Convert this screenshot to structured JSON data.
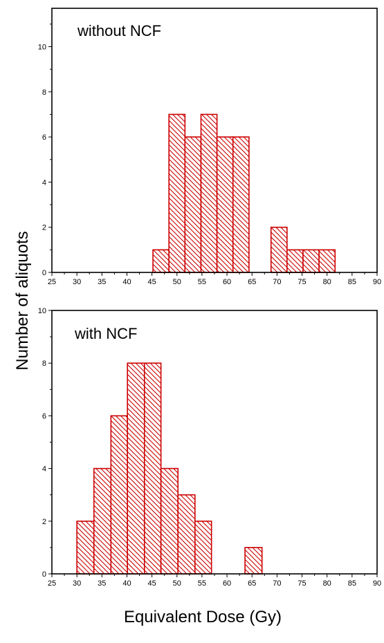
{
  "figure": {
    "ylabel": "Number of aliquots",
    "xlabel": "Equivalent Dose (Gy)"
  },
  "chart_data": [
    {
      "type": "bar",
      "histogram": true,
      "label": "without NCF",
      "x_ticks": [
        25,
        30,
        35,
        40,
        45,
        50,
        55,
        60,
        65,
        70,
        75,
        80,
        85,
        90
      ],
      "y_ticks": [
        0,
        2,
        4,
        6,
        8,
        10
      ],
      "xlim": [
        25,
        90
      ],
      "ylim": [
        0,
        11.7
      ],
      "bar_fill": "hatched",
      "bar_color": "#cc0000",
      "bins": [
        {
          "start": 45.2,
          "end": 48.4,
          "count": 1
        },
        {
          "start": 48.4,
          "end": 51.6,
          "count": 7
        },
        {
          "start": 51.6,
          "end": 54.8,
          "count": 6
        },
        {
          "start": 54.8,
          "end": 58.0,
          "count": 7
        },
        {
          "start": 58.0,
          "end": 61.2,
          "count": 6
        },
        {
          "start": 61.2,
          "end": 64.4,
          "count": 6
        },
        {
          "start": 68.8,
          "end": 72.0,
          "count": 2
        },
        {
          "start": 72.0,
          "end": 75.2,
          "count": 1
        },
        {
          "start": 75.2,
          "end": 78.4,
          "count": 1
        },
        {
          "start": 78.4,
          "end": 81.6,
          "count": 1
        }
      ]
    },
    {
      "type": "bar",
      "histogram": true,
      "label": "with NCF",
      "x_ticks": [
        25,
        30,
        35,
        40,
        45,
        50,
        55,
        60,
        65,
        70,
        75,
        80,
        85,
        90
      ],
      "y_ticks": [
        0,
        2,
        4,
        6,
        8,
        10
      ],
      "xlim": [
        25,
        90
      ],
      "ylim": [
        0,
        10
      ],
      "bar_fill": "hatched",
      "bar_color": "#cc0000",
      "bins": [
        {
          "start": 30.0,
          "end": 33.4,
          "count": 2
        },
        {
          "start": 33.4,
          "end": 36.8,
          "count": 4
        },
        {
          "start": 36.8,
          "end": 40.1,
          "count": 6
        },
        {
          "start": 40.1,
          "end": 43.5,
          "count": 8
        },
        {
          "start": 43.5,
          "end": 46.8,
          "count": 8
        },
        {
          "start": 46.8,
          "end": 50.2,
          "count": 4
        },
        {
          "start": 50.2,
          "end": 53.6,
          "count": 3
        },
        {
          "start": 53.6,
          "end": 56.9,
          "count": 2
        },
        {
          "start": 63.6,
          "end": 67.0,
          "count": 1
        }
      ]
    }
  ]
}
